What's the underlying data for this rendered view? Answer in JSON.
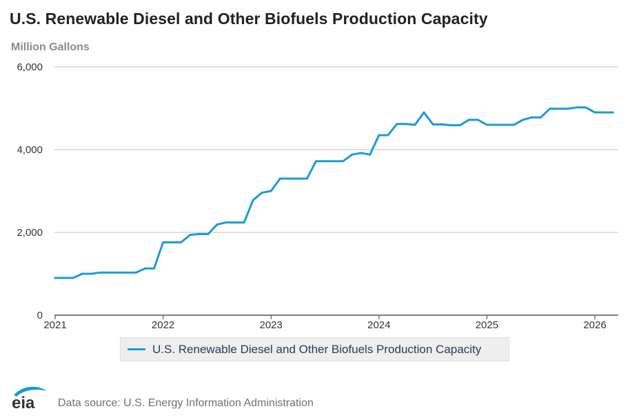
{
  "title": "U.S. Renewable Diesel and Other Biofuels Production Capacity",
  "unit_label": "Million Gallons",
  "source_text": "Data source: U.S. Energy Information Administration",
  "logo_text": "eia",
  "colors": {
    "series": "#1a9bd7",
    "grid": "#cccccc",
    "axis": "#555555",
    "logo": "#1a9bd7"
  },
  "chart_data": {
    "type": "line",
    "title": "U.S. Renewable Diesel and Other Biofuels Production Capacity",
    "ylabel": "Million Gallons",
    "xlabel": "",
    "ylim": [
      0,
      6000
    ],
    "xlim": [
      "2021-01",
      "2026-03"
    ],
    "y_ticks": [
      0,
      2000,
      4000,
      6000
    ],
    "y_tick_labels": [
      "0",
      "2,000",
      "4,000",
      "6,000"
    ],
    "x_ticks": [
      2021,
      2022,
      2023,
      2024,
      2025,
      2026
    ],
    "x_tick_labels": [
      "2021",
      "2022",
      "2023",
      "2024",
      "2025",
      "2026"
    ],
    "grid": "horizontal",
    "legend_position": "bottom",
    "series": [
      {
        "name": "U.S. Renewable Diesel and Other Biofuels Production Capacity",
        "x": [
          "2021-01",
          "2021-02",
          "2021-03",
          "2021-04",
          "2021-05",
          "2021-06",
          "2021-07",
          "2021-08",
          "2021-09",
          "2021-10",
          "2021-11",
          "2021-12",
          "2022-01",
          "2022-02",
          "2022-03",
          "2022-04",
          "2022-05",
          "2022-06",
          "2022-07",
          "2022-08",
          "2022-09",
          "2022-10",
          "2022-11",
          "2022-12",
          "2023-01",
          "2023-02",
          "2023-03",
          "2023-04",
          "2023-05",
          "2023-06",
          "2023-07",
          "2023-08",
          "2023-09",
          "2023-10",
          "2023-11",
          "2023-12",
          "2024-01",
          "2024-02",
          "2024-03",
          "2024-04",
          "2024-05",
          "2024-06",
          "2024-07",
          "2024-08",
          "2024-09",
          "2024-10",
          "2024-11",
          "2024-12",
          "2025-01",
          "2025-02",
          "2025-03",
          "2025-04",
          "2025-05",
          "2025-06",
          "2025-07",
          "2025-08",
          "2025-09",
          "2025-10",
          "2025-11",
          "2025-12",
          "2026-01",
          "2026-02",
          "2026-03"
        ],
        "values": [
          900,
          900,
          900,
          1000,
          1000,
          1030,
          1030,
          1030,
          1030,
          1030,
          1130,
          1130,
          1760,
          1760,
          1760,
          1940,
          1960,
          1960,
          2190,
          2240,
          2240,
          2240,
          2780,
          2960,
          3000,
          3300,
          3300,
          3300,
          3300,
          3720,
          3720,
          3720,
          3720,
          3880,
          3920,
          3880,
          4350,
          4350,
          4620,
          4620,
          4600,
          4900,
          4610,
          4610,
          4590,
          4590,
          4720,
          4720,
          4600,
          4600,
          4600,
          4600,
          4720,
          4780,
          4780,
          4990,
          4990,
          4990,
          5020,
          5020,
          4900,
          4900,
          4900
        ]
      }
    ]
  }
}
